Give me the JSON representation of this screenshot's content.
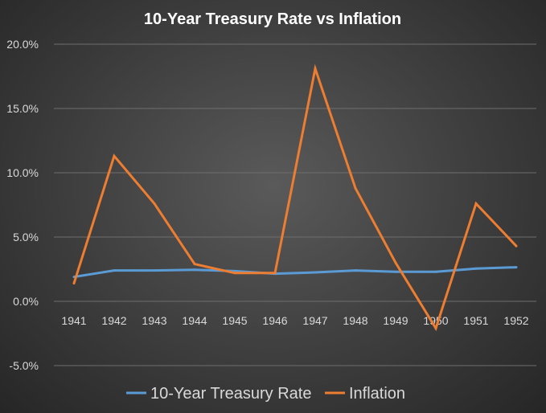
{
  "chart_data": {
    "type": "line",
    "title": "10-Year Treasury Rate vs Inflation",
    "xlabel": "",
    "ylabel": "",
    "categories": [
      "1941",
      "1942",
      "1943",
      "1944",
      "1945",
      "1946",
      "1947",
      "1948",
      "1949",
      "1950",
      "1951",
      "1952"
    ],
    "series": [
      {
        "name": "10-Year Treasury Rate",
        "color": "#5b9bd5",
        "values": [
          1.9,
          2.4,
          2.4,
          2.45,
          2.35,
          2.15,
          2.25,
          2.4,
          2.3,
          2.3,
          2.55,
          2.65
        ]
      },
      {
        "name": "Inflation",
        "color": "#ed7d31",
        "values": [
          1.4,
          11.3,
          7.6,
          2.9,
          2.2,
          2.2,
          18.1,
          8.8,
          3.0,
          -2.1,
          7.6,
          4.3
        ]
      }
    ],
    "ylim": [
      -5,
      20
    ],
    "yticks": [
      -5,
      0,
      5,
      10,
      15,
      20
    ],
    "ytick_labels": [
      "-5.0%",
      "0.0%",
      "5.0%",
      "10.0%",
      "15.0%",
      "20.0%"
    ],
    "grid": true,
    "legend_position": "bottom"
  }
}
